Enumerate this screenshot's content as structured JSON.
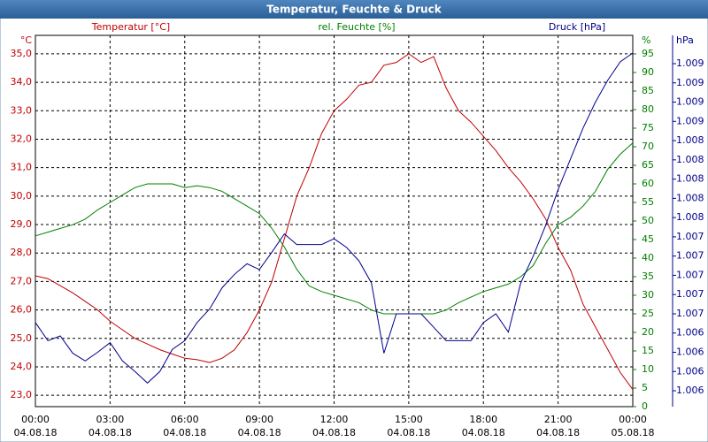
{
  "chart_data": {
    "type": "line",
    "title": "Temperatur, Feuchte & Druck",
    "ylabel": "°C",
    "y2label": "%",
    "y3label": "hPa",
    "x": [
      0,
      0.5,
      1,
      1.5,
      2,
      2.5,
      3,
      3.5,
      4,
      4.5,
      5,
      5.5,
      6,
      6.5,
      7,
      7.5,
      8,
      8.5,
      9,
      9.5,
      10,
      10.5,
      11,
      11.5,
      12,
      12.5,
      13,
      13.5,
      14,
      14.5,
      15,
      15.5,
      16,
      16.5,
      17,
      17.5,
      18,
      18.5,
      19,
      19.5,
      20,
      20.5,
      21,
      21.5,
      22,
      22.5,
      23,
      23.5,
      24
    ],
    "xlim": [
      0,
      24
    ],
    "xticks": [
      {
        "value": 0,
        "label": "00:00"
      },
      {
        "value": 3,
        "label": "03:00"
      },
      {
        "value": 6,
        "label": "06:00"
      },
      {
        "value": 9,
        "label": "09:00"
      },
      {
        "value": 12,
        "label": "12:00"
      },
      {
        "value": 15,
        "label": "15:00"
      },
      {
        "value": 18,
        "label": "18:00"
      },
      {
        "value": 21,
        "label": "21:00"
      },
      {
        "value": 24,
        "label": "00:00"
      }
    ],
    "xtick_dates": [
      "04.08.18",
      "04.08.18",
      "04.08.18",
      "04.08.18",
      "04.08.18",
      "04.08.18",
      "04.08.18",
      "04.08.18",
      "05.08.18"
    ],
    "ylim": [
      22.6,
      35.65
    ],
    "yticks": [
      {
        "value": 23,
        "label": "23,0"
      },
      {
        "value": 24,
        "label": "24,0"
      },
      {
        "value": 25,
        "label": "25,0"
      },
      {
        "value": 26,
        "label": "26,0"
      },
      {
        "value": 27,
        "label": "27,0"
      },
      {
        "value": 28,
        "label": "28,0"
      },
      {
        "value": 29,
        "label": "29,0"
      },
      {
        "value": 30,
        "label": "30,0"
      },
      {
        "value": 31,
        "label": "31,0"
      },
      {
        "value": 32,
        "label": "32,0"
      },
      {
        "value": 33,
        "label": "33,0"
      },
      {
        "value": 34,
        "label": "34,0"
      },
      {
        "value": 35,
        "label": "35,0"
      }
    ],
    "y2lim": [
      0,
      100
    ],
    "y2ticks": [
      0,
      5,
      10,
      15,
      20,
      25,
      30,
      35,
      40,
      45,
      50,
      55,
      60,
      65,
      70,
      75,
      80,
      85,
      90,
      95
    ],
    "y3lim": [
      1.005685,
      1.009544
    ],
    "y3ticks": [
      {
        "value": 1.00585,
        "label": "1.006"
      },
      {
        "value": 1.00605,
        "label": "1.006"
      },
      {
        "value": 1.00625,
        "label": "1.006"
      },
      {
        "value": 1.00645,
        "label": "1.006"
      },
      {
        "value": 1.00665,
        "label": "1.007"
      },
      {
        "value": 1.00685,
        "label": "1.007"
      },
      {
        "value": 1.00705,
        "label": "1.007"
      },
      {
        "value": 1.00725,
        "label": "1.007"
      },
      {
        "value": 1.00745,
        "label": "1.007"
      },
      {
        "value": 1.00765,
        "label": "1.008"
      },
      {
        "value": 1.00785,
        "label": "1.008"
      },
      {
        "value": 1.00805,
        "label": "1.008"
      },
      {
        "value": 1.00825,
        "label": "1.008"
      },
      {
        "value": 1.00845,
        "label": "1.008"
      },
      {
        "value": 1.00865,
        "label": "1.009"
      },
      {
        "value": 1.00885,
        "label": "1.009"
      },
      {
        "value": 1.00905,
        "label": "1.009"
      },
      {
        "value": 1.00925,
        "label": "1.009"
      }
    ],
    "grid": true,
    "series": [
      {
        "name": "Temperatur [°C]",
        "color": "#c00000",
        "axis": "y",
        "values": [
          27.2,
          27.1,
          26.85,
          26.6,
          26.3,
          26.0,
          25.6,
          25.3,
          25.0,
          24.8,
          24.6,
          24.45,
          24.3,
          24.25,
          24.15,
          24.3,
          24.6,
          25.2,
          26.0,
          27.0,
          28.5,
          30.0,
          31.0,
          32.2,
          33.0,
          33.4,
          33.9,
          34.0,
          34.6,
          34.7,
          35.0,
          34.7,
          34.9,
          33.8,
          33.0,
          32.6,
          32.1,
          31.6,
          31.0,
          30.5,
          29.9,
          29.2,
          28.2,
          27.4,
          26.2,
          25.4,
          24.6,
          23.8,
          23.2
        ]
      },
      {
        "name": "rel. Feuchte [%]",
        "color": "#008000",
        "axis": "y2",
        "values": [
          46,
          47,
          48,
          49,
          50.5,
          53,
          55,
          57,
          59,
          60,
          60,
          60,
          59,
          59.5,
          59,
          58,
          56,
          54,
          52,
          48,
          43,
          37,
          32.5,
          31,
          30,
          29,
          28,
          26,
          25,
          25,
          25,
          25,
          25,
          26,
          28,
          29.5,
          31,
          32,
          33,
          35,
          38,
          44,
          49,
          51,
          54,
          58,
          64,
          68,
          71
        ]
      },
      {
        "name": "Druck [hPa]",
        "color": "#00008b",
        "axis": "y3",
        "values": [
          1.00656,
          1.00637,
          1.00642,
          1.00624,
          1.00616,
          1.00625,
          1.00635,
          1.00616,
          1.00605,
          1.00593,
          1.00605,
          1.00628,
          1.00637,
          1.00656,
          1.0067,
          1.00692,
          1.00706,
          1.00717,
          1.00711,
          1.00729,
          1.00748,
          1.00737,
          1.00737,
          1.00737,
          1.00743,
          1.00734,
          1.0072,
          1.00697,
          1.00624,
          1.00665,
          1.00665,
          1.00665,
          1.00651,
          1.00637,
          1.00637,
          1.00637,
          1.00656,
          1.00665,
          1.00646,
          1.00697,
          1.00725,
          1.00757,
          1.00794,
          1.00826,
          1.00858,
          1.00885,
          1.00908,
          1.00927,
          1.00936
        ]
      }
    ]
  }
}
